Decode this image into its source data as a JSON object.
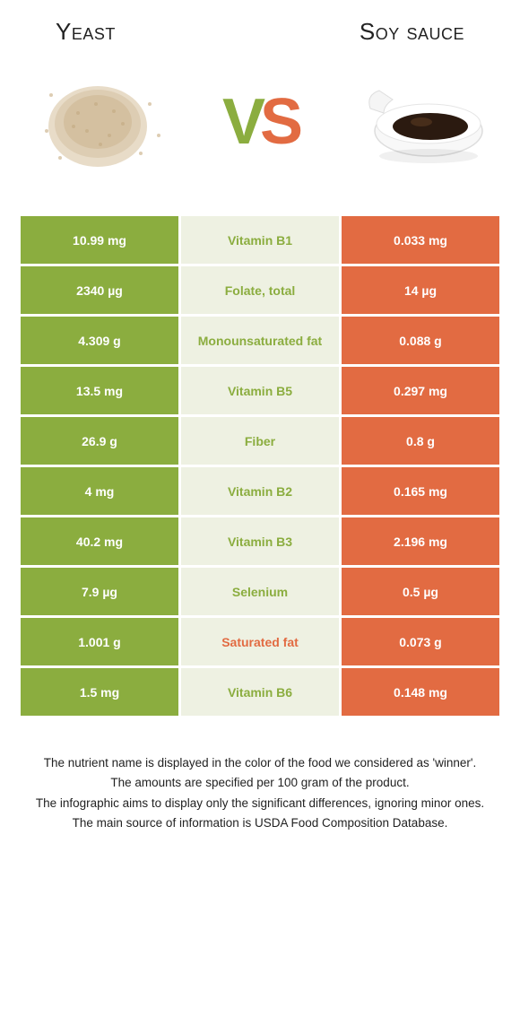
{
  "food_a": {
    "title": "Yeast"
  },
  "food_b": {
    "title": "Soy sauce"
  },
  "vs_letters": {
    "v": "V",
    "s": "S"
  },
  "colors": {
    "green": "#8bad3f",
    "orange": "#e26b42",
    "mid_bg": "#eef1e2",
    "white": "#ffffff",
    "text": "#222222"
  },
  "rows": [
    {
      "left": "10.99 mg",
      "label": "Vitamin B1",
      "right": "0.033 mg",
      "winner": "a"
    },
    {
      "left": "2340 µg",
      "label": "Folate, total",
      "right": "14 µg",
      "winner": "a"
    },
    {
      "left": "4.309 g",
      "label": "Monounsaturated fat",
      "right": "0.088 g",
      "winner": "a"
    },
    {
      "left": "13.5 mg",
      "label": "Vitamin B5",
      "right": "0.297 mg",
      "winner": "a"
    },
    {
      "left": "26.9 g",
      "label": "Fiber",
      "right": "0.8 g",
      "winner": "a"
    },
    {
      "left": "4 mg",
      "label": "Vitamin B2",
      "right": "0.165 mg",
      "winner": "a"
    },
    {
      "left": "40.2 mg",
      "label": "Vitamin B3",
      "right": "2.196 mg",
      "winner": "a"
    },
    {
      "left": "7.9 µg",
      "label": "Selenium",
      "right": "0.5 µg",
      "winner": "a"
    },
    {
      "left": "1.001 g",
      "label": "Saturated fat",
      "right": "0.073 g",
      "winner": "b"
    },
    {
      "left": "1.5 mg",
      "label": "Vitamin B6",
      "right": "0.148 mg",
      "winner": "a"
    }
  ],
  "footer": {
    "line1": "The nutrient name is displayed in the color of the food we considered as 'winner'.",
    "line2": "The amounts are specified per 100 gram of the product.",
    "line3": "The infographic aims to display only the significant differences, ignoring minor ones.",
    "line4": "The main source of information is USDA Food Composition Database."
  }
}
